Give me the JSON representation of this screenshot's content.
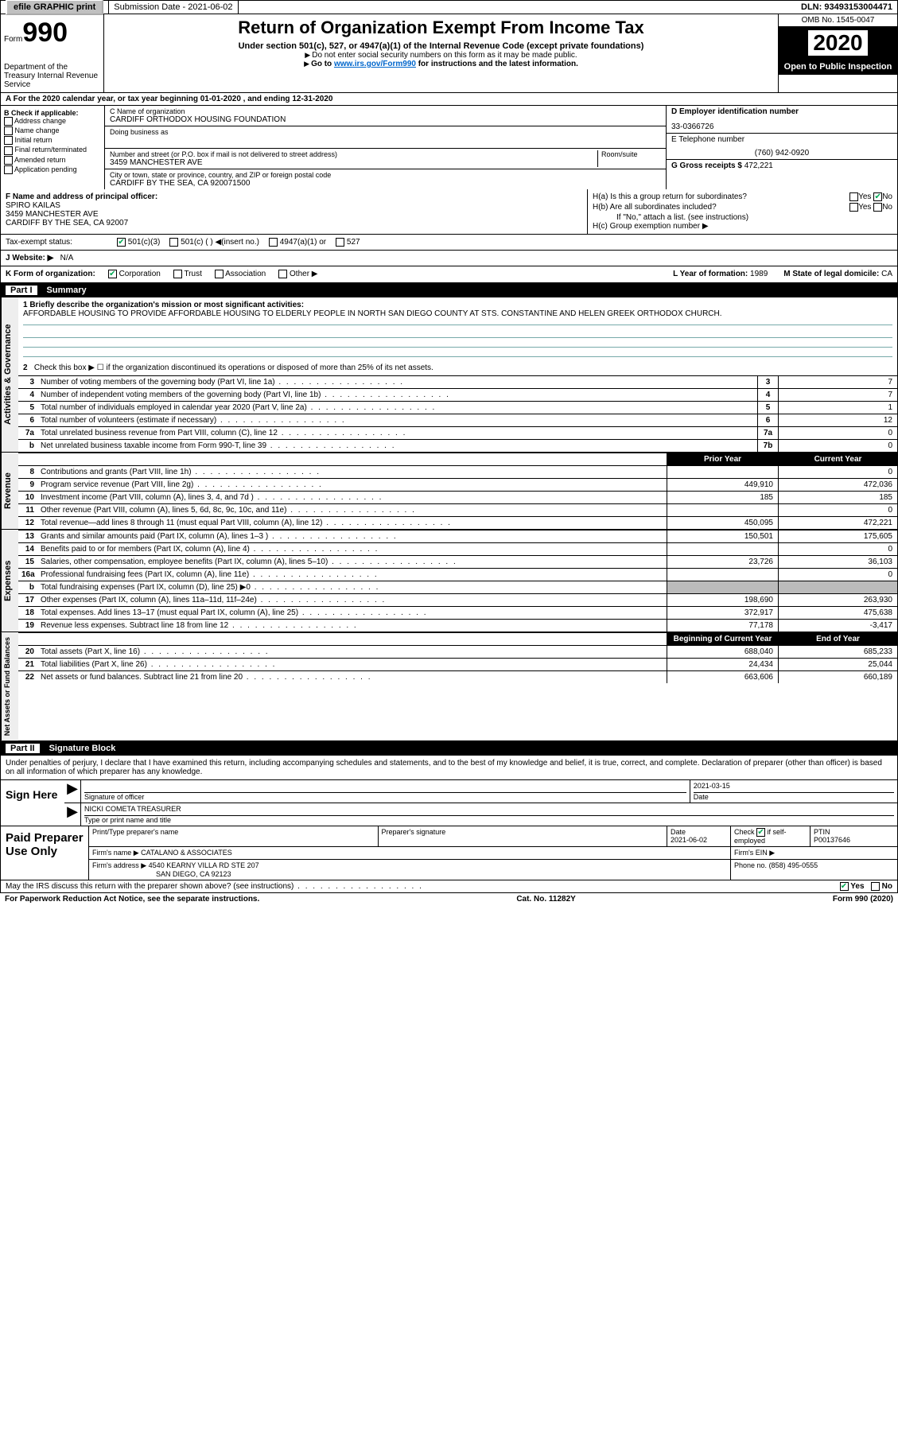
{
  "topbar": {
    "efile": "efile GRAPHIC print",
    "submission_label": "Submission Date - 2021-06-02",
    "dln": "DLN: 93493153004471"
  },
  "header": {
    "form_ref": "Form",
    "form_num": "990",
    "dept": "Department of the Treasury\nInternal Revenue Service",
    "title": "Return of Organization Exempt From Income Tax",
    "subtitle": "Under section 501(c), 527, or 4947(a)(1) of the Internal Revenue Code (except private foundations)",
    "note1": "Do not enter social security numbers on this form as it may be made public.",
    "note2_pre": "Go to ",
    "note2_link": "www.irs.gov/Form990",
    "note2_post": " for instructions and the latest information.",
    "omb": "OMB No. 1545-0047",
    "tax_year": "2020",
    "inspection": "Open to Public Inspection"
  },
  "line_a": "A For the 2020 calendar year, or tax year beginning 01-01-2020    , and ending 12-31-2020",
  "col_b": {
    "title": "B Check if applicable:",
    "opts": [
      "Address change",
      "Name change",
      "Initial return",
      "Final return/terminated",
      "Amended return",
      "Application pending"
    ]
  },
  "col_c": {
    "name_label": "C Name of organization",
    "name": "CARDIFF ORTHODOX HOUSING FOUNDATION",
    "dba_label": "Doing business as",
    "dba": "",
    "street_label": "Number and street (or P.O. box if mail is not delivered to street address)",
    "room_label": "Room/suite",
    "street": "3459 MANCHESTER AVE",
    "city_label": "City or town, state or province, country, and ZIP or foreign postal code",
    "city": "CARDIFF BY THE SEA, CA  920071500",
    "officer_label": "F Name and address of principal officer:",
    "officer_name": "SPIRO KAILAS",
    "officer_addr1": "3459 MANCHESTER AVE",
    "officer_addr2": "CARDIFF BY THE SEA, CA  92007"
  },
  "col_d": {
    "ein_label": "D Employer identification number",
    "ein": "33-0366726",
    "phone_label": "E Telephone number",
    "phone": "(760) 942-0920",
    "gross_label": "G Gross receipts $",
    "gross": "472,221"
  },
  "col_h": {
    "ha": "H(a)  Is this a group return for subordinates?",
    "hb": "H(b)  Are all subordinates included?",
    "hnote": "If \"No,\" attach a list. (see instructions)",
    "hc": "H(c)  Group exemption number ▶",
    "yes": "Yes",
    "no": "No"
  },
  "status": {
    "label": "Tax-exempt status:",
    "opt1": "501(c)(3)",
    "opt2": "501(c) (  ) ◀(insert no.)",
    "opt3": "4947(a)(1) or",
    "opt4": "527"
  },
  "website": {
    "label_j": "J    Website: ▶",
    "val": "N/A"
  },
  "korg": {
    "label": "K Form of organization:",
    "opts": [
      "Corporation",
      "Trust",
      "Association",
      "Other ▶"
    ],
    "l_label": "L Year of formation:",
    "l_val": "1989",
    "m_label": "M State of legal domicile:",
    "m_val": "CA"
  },
  "part1": {
    "num": "Part I",
    "title": "Summary"
  },
  "mission": {
    "label": "1  Briefly describe the organization's mission or most significant activities:",
    "text": "AFFORDABLE HOUSING TO PROVIDE AFFORDABLE HOUSING TO ELDERLY PEOPLE IN NORTH SAN DIEGO COUNTY AT STS. CONSTANTINE AND HELEN GREEK ORTHODOX CHURCH."
  },
  "line2": "Check this box ▶ ☐ if the organization discontinued its operations or disposed of more than 25% of its net assets.",
  "vtabs": {
    "ag": "Activities & Governance",
    "rev": "Revenue",
    "exp": "Expenses",
    "na": "Net Assets or Fund Balances"
  },
  "rows_ag": [
    {
      "n": "3",
      "l": "Number of voting members of the governing body (Part VI, line 1a)",
      "b": "3",
      "v": "7"
    },
    {
      "n": "4",
      "l": "Number of independent voting members of the governing body (Part VI, line 1b)",
      "b": "4",
      "v": "7"
    },
    {
      "n": "5",
      "l": "Total number of individuals employed in calendar year 2020 (Part V, line 2a)",
      "b": "5",
      "v": "1"
    },
    {
      "n": "6",
      "l": "Total number of volunteers (estimate if necessary)",
      "b": "6",
      "v": "12"
    },
    {
      "n": "7a",
      "l": "Total unrelated business revenue from Part VIII, column (C), line 12",
      "b": "7a",
      "v": "0"
    },
    {
      "n": "b",
      "l": "Net unrelated business taxable income from Form 990-T, line 39",
      "b": "7b",
      "v": "0"
    }
  ],
  "col_hdrs": {
    "prior": "Prior Year",
    "current": "Current Year"
  },
  "rows_rev": [
    {
      "n": "8",
      "l": "Contributions and grants (Part VIII, line 1h)",
      "p": "",
      "c": "0"
    },
    {
      "n": "9",
      "l": "Program service revenue (Part VIII, line 2g)",
      "p": "449,910",
      "c": "472,036"
    },
    {
      "n": "10",
      "l": "Investment income (Part VIII, column (A), lines 3, 4, and 7d )",
      "p": "185",
      "c": "185"
    },
    {
      "n": "11",
      "l": "Other revenue (Part VIII, column (A), lines 5, 6d, 8c, 9c, 10c, and 11e)",
      "p": "",
      "c": "0"
    },
    {
      "n": "12",
      "l": "Total revenue—add lines 8 through 11 (must equal Part VIII, column (A), line 12)",
      "p": "450,095",
      "c": "472,221"
    }
  ],
  "rows_exp": [
    {
      "n": "13",
      "l": "Grants and similar amounts paid (Part IX, column (A), lines 1–3 )",
      "p": "150,501",
      "c": "175,605"
    },
    {
      "n": "14",
      "l": "Benefits paid to or for members (Part IX, column (A), line 4)",
      "p": "",
      "c": "0"
    },
    {
      "n": "15",
      "l": "Salaries, other compensation, employee benefits (Part IX, column (A), lines 5–10)",
      "p": "23,726",
      "c": "36,103"
    },
    {
      "n": "16a",
      "l": "Professional fundraising fees (Part IX, column (A), line 11e)",
      "p": "",
      "c": "0"
    },
    {
      "n": "b",
      "l": "Total fundraising expenses (Part IX, column (D), line 25) ▶0",
      "p": "",
      "c": "",
      "shaded": true
    },
    {
      "n": "17",
      "l": "Other expenses (Part IX, column (A), lines 11a–11d, 11f–24e)",
      "p": "198,690",
      "c": "263,930"
    },
    {
      "n": "18",
      "l": "Total expenses. Add lines 13–17 (must equal Part IX, column (A), line 25)",
      "p": "372,917",
      "c": "475,638"
    },
    {
      "n": "19",
      "l": "Revenue less expenses. Subtract line 18 from line 12",
      "p": "77,178",
      "c": "-3,417"
    }
  ],
  "col_hdrs2": {
    "begin": "Beginning of Current Year",
    "end": "End of Year"
  },
  "rows_na": [
    {
      "n": "20",
      "l": "Total assets (Part X, line 16)",
      "p": "688,040",
      "c": "685,233"
    },
    {
      "n": "21",
      "l": "Total liabilities (Part X, line 26)",
      "p": "24,434",
      "c": "25,044"
    },
    {
      "n": "22",
      "l": "Net assets or fund balances. Subtract line 21 from line 20",
      "p": "663,606",
      "c": "660,189"
    }
  ],
  "part2": {
    "num": "Part II",
    "title": "Signature Block"
  },
  "sig_intro": "Under penalties of perjury, I declare that I have examined this return, including accompanying schedules and statements, and to the best of my knowledge and belief, it is true, correct, and complete. Declaration of preparer (other than officer) is based on all information of which preparer has any knowledge.",
  "sign": {
    "here": "Sign Here",
    "sig_label": "Signature of officer",
    "date_label": "Date",
    "date": "2021-03-15",
    "name": "NICKI COMETA  TREASURER",
    "name_label": "Type or print name and title"
  },
  "prep": {
    "title": "Paid Preparer Use Only",
    "h1": "Print/Type preparer's name",
    "h2": "Preparer's signature",
    "h3": "Date",
    "date": "2021-06-02",
    "h4a": "Check",
    "h4b": "if self-employed",
    "h5": "PTIN",
    "ptin": "P00137646",
    "firm_label": "Firm's name    ▶",
    "firm": "CATALANO & ASSOCIATES",
    "ein_label": "Firm's EIN ▶",
    "addr_label": "Firm's address ▶",
    "addr1": "4540 KEARNY VILLA RD STE 207",
    "addr2": "SAN DIEGO, CA  92123",
    "phone_label": "Phone no.",
    "phone": "(858) 495-0555"
  },
  "footer": {
    "discuss": "May the IRS discuss this return with the preparer shown above? (see instructions)",
    "yes": "Yes",
    "no": "No",
    "paperwork": "For Paperwork Reduction Act Notice, see the separate instructions.",
    "cat": "Cat. No. 11282Y",
    "form": "Form 990 (2020)"
  }
}
